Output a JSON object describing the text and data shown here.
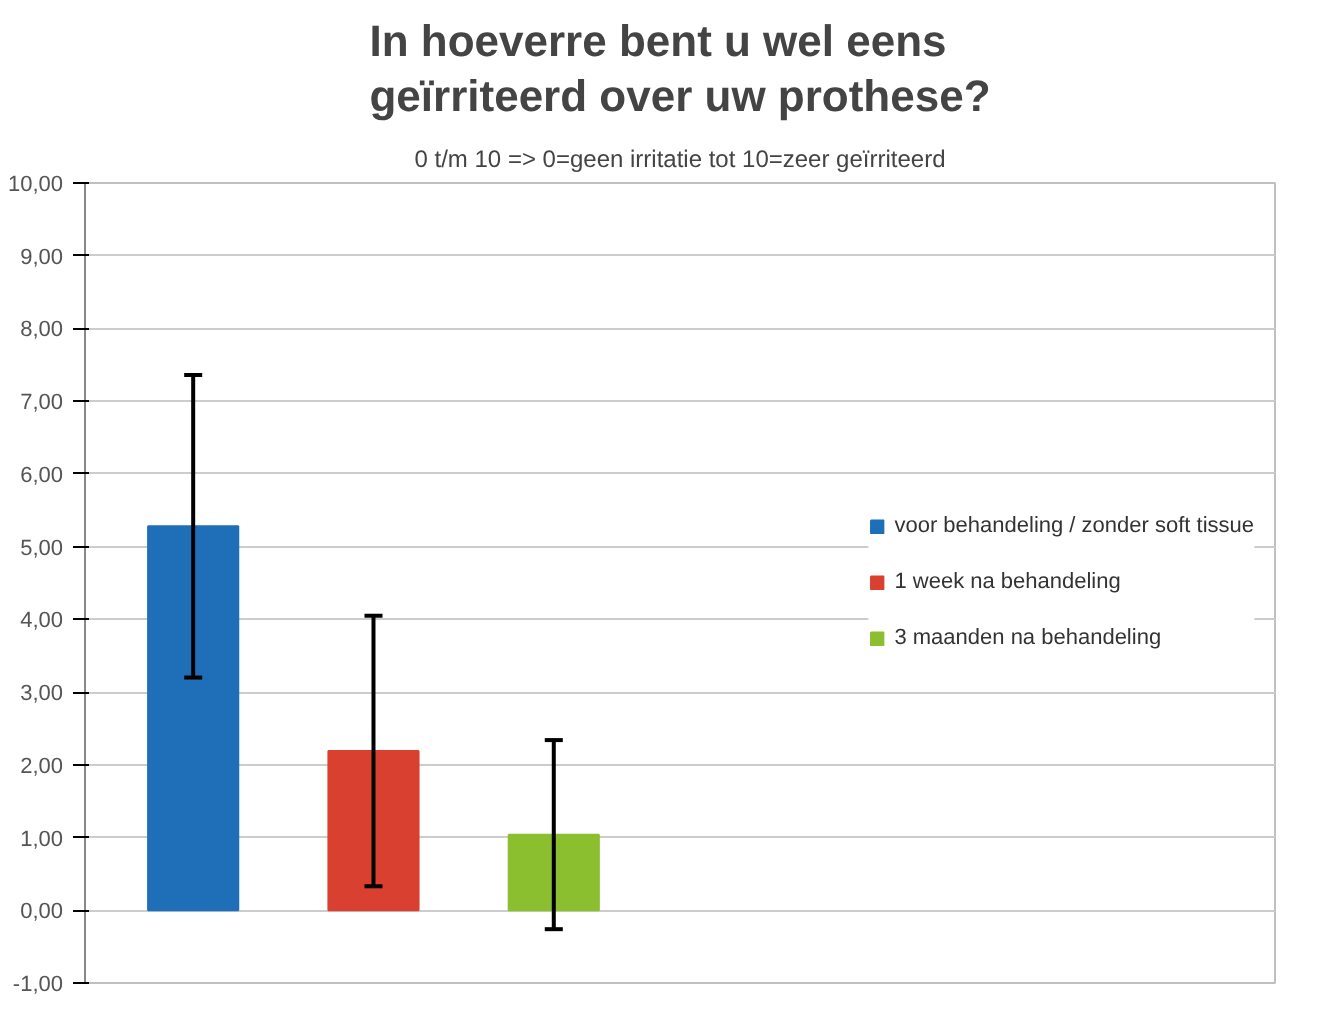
{
  "chart_data": {
    "type": "bar",
    "title": "In hoeverre bent u wel eens geïrriteerd over uw prothese?",
    "subtitle": "0 t/m 10 => 0=geen irritatie tot 10=zeer geïrriteerd",
    "categories": [
      null
    ],
    "series": [
      {
        "name": "voor behandeling / zonder soft tissue",
        "color": "#1f6fb8",
        "values": [
          5.28
        ],
        "errors": [
          2.08
        ]
      },
      {
        "name": "1 week na behandeling",
        "color": "#d9402f",
        "values": [
          2.19
        ],
        "errors": [
          1.86
        ]
      },
      {
        "name": "3 maanden na behandeling",
        "color": "#8cbf30",
        "values": [
          1.04
        ],
        "errors": [
          1.3
        ]
      }
    ],
    "ylim": [
      -1,
      10
    ],
    "yticks": [
      {
        "value": -1,
        "label": "-1,00"
      },
      {
        "value": 0,
        "label": "0,00"
      },
      {
        "value": 1,
        "label": "1,00"
      },
      {
        "value": 2,
        "label": "2,00"
      },
      {
        "value": 3,
        "label": "3,00"
      },
      {
        "value": 4,
        "label": "4,00"
      },
      {
        "value": 5,
        "label": "5,00"
      },
      {
        "value": 6,
        "label": "6,00"
      },
      {
        "value": 7,
        "label": "7,00"
      },
      {
        "value": 8,
        "label": "8,00"
      },
      {
        "value": 9,
        "label": "9,00"
      },
      {
        "value": 10,
        "label": "10,00"
      }
    ],
    "grid": "y",
    "legend": "right",
    "tick_labels": "y"
  }
}
